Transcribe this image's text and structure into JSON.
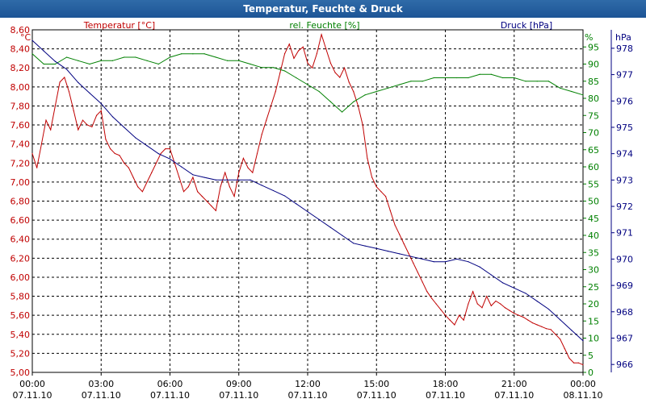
{
  "window": {
    "title": "Temperatur, Feuchte & Druck"
  },
  "chart_data": {
    "type": "line",
    "title": "Temperatur, Feuchte & Druck",
    "grid": true,
    "legend_position": "top",
    "x": {
      "range_hours": [
        0,
        24
      ],
      "ticks": [
        {
          "time": "00:00",
          "date": "07.11.10"
        },
        {
          "time": "03:00",
          "date": "07.11.10"
        },
        {
          "time": "06:00",
          "date": "07.11.10"
        },
        {
          "time": "09:00",
          "date": "07.11.10"
        },
        {
          "time": "12:00",
          "date": "07.11.10"
        },
        {
          "time": "15:00",
          "date": "07.11.10"
        },
        {
          "time": "18:00",
          "date": "07.11.10"
        },
        {
          "time": "21:00",
          "date": "07.11.10"
        },
        {
          "time": "00:00",
          "date": "08.11.10"
        }
      ]
    },
    "axes": {
      "temp": {
        "unit": "°C",
        "ylim": [
          5.0,
          8.6
        ],
        "ticks": [
          "5,00",
          "5,20",
          "5,40",
          "5,60",
          "5,80",
          "6,00",
          "6,20",
          "6,40",
          "6,60",
          "6,80",
          "7,00",
          "7,20",
          "7,40",
          "7,60",
          "7,80",
          "8,00",
          "8,20",
          "8,40",
          "8,60"
        ]
      },
      "hum": {
        "unit": "%",
        "ylim": [
          0,
          100
        ],
        "ticks": [
          "0",
          "5",
          "10",
          "15",
          "20",
          "25",
          "30",
          "35",
          "40",
          "45",
          "50",
          "55",
          "60",
          "65",
          "70",
          "75",
          "80",
          "85",
          "90",
          "95"
        ]
      },
      "press": {
        "unit": "hPa",
        "ylim": [
          965.7,
          978.7
        ],
        "ticks": [
          "966",
          "967",
          "968",
          "969",
          "970",
          "971",
          "972",
          "973",
          "974",
          "975",
          "976",
          "977",
          "978"
        ]
      }
    },
    "series": [
      {
        "name": "Temperatur [°C]",
        "axis": "temp",
        "color": "#c00000",
        "x": [
          0.0,
          0.2,
          0.4,
          0.6,
          0.8,
          1.0,
          1.2,
          1.4,
          1.6,
          1.8,
          2.0,
          2.2,
          2.4,
          2.6,
          2.8,
          3.0,
          3.2,
          3.4,
          3.6,
          3.8,
          4.0,
          4.2,
          4.4,
          4.6,
          4.8,
          5.0,
          5.2,
          5.4,
          5.6,
          5.8,
          6.0,
          6.2,
          6.4,
          6.6,
          6.8,
          7.0,
          7.2,
          7.4,
          7.6,
          7.8,
          8.0,
          8.2,
          8.4,
          8.6,
          8.8,
          9.0,
          9.2,
          9.4,
          9.6,
          9.8,
          10.0,
          10.2,
          10.4,
          10.6,
          10.8,
          11.0,
          11.2,
          11.4,
          11.6,
          11.8,
          12.0,
          12.2,
          12.4,
          12.6,
          12.8,
          13.0,
          13.2,
          13.4,
          13.6,
          13.8,
          14.0,
          14.2,
          14.4,
          14.6,
          14.8,
          15.0,
          15.2,
          15.4,
          15.6,
          15.8,
          16.0,
          16.2,
          16.4,
          16.6,
          16.8,
          17.0,
          17.2,
          17.4,
          17.6,
          17.8,
          18.0,
          18.2,
          18.4,
          18.6,
          18.8,
          19.0,
          19.2,
          19.4,
          19.6,
          19.8,
          20.0,
          20.2,
          20.4,
          20.6,
          20.8,
          21.0,
          21.2,
          21.4,
          21.6,
          21.8,
          22.0,
          22.2,
          22.4,
          22.6,
          22.8,
          23.0,
          23.2,
          23.4,
          23.6,
          23.8,
          24.0
        ],
        "values": [
          7.3,
          7.15,
          7.4,
          7.65,
          7.55,
          7.8,
          8.05,
          8.1,
          7.95,
          7.75,
          7.55,
          7.65,
          7.6,
          7.58,
          7.7,
          7.75,
          7.45,
          7.35,
          7.3,
          7.28,
          7.2,
          7.15,
          7.05,
          6.95,
          6.9,
          7.0,
          7.1,
          7.2,
          7.3,
          7.35,
          7.35,
          7.2,
          7.05,
          6.9,
          6.95,
          7.05,
          6.9,
          6.85,
          6.8,
          6.75,
          6.7,
          6.95,
          7.1,
          6.95,
          6.85,
          7.1,
          7.25,
          7.15,
          7.1,
          7.3,
          7.5,
          7.65,
          7.8,
          7.95,
          8.15,
          8.35,
          8.45,
          8.3,
          8.38,
          8.42,
          8.25,
          8.2,
          8.35,
          8.55,
          8.4,
          8.25,
          8.15,
          8.1,
          8.2,
          8.05,
          7.95,
          7.8,
          7.6,
          7.25,
          7.05,
          6.95,
          6.9,
          6.85,
          6.7,
          6.55,
          6.45,
          6.35,
          6.25,
          6.15,
          6.05,
          5.95,
          5.85,
          5.78,
          5.72,
          5.66,
          5.6,
          5.55,
          5.5,
          5.6,
          5.55,
          5.72,
          5.85,
          5.72,
          5.68,
          5.8,
          5.7,
          5.75,
          5.72,
          5.68,
          5.65,
          5.62,
          5.6,
          5.58,
          5.55,
          5.52,
          5.5,
          5.48,
          5.46,
          5.45,
          5.4,
          5.35,
          5.25,
          5.15,
          5.1,
          5.1,
          5.08
        ],
        "label_position": "top-left"
      },
      {
        "name": "rel. Feuchte [%]",
        "axis": "hum",
        "color": "#008000",
        "x": [
          0.0,
          0.5,
          1.0,
          1.5,
          2.0,
          2.5,
          3.0,
          3.5,
          4.0,
          4.5,
          5.0,
          5.5,
          6.0,
          6.5,
          7.0,
          7.5,
          8.0,
          8.5,
          9.0,
          9.5,
          10.0,
          10.5,
          11.0,
          11.5,
          12.0,
          12.5,
          13.0,
          13.5,
          14.0,
          14.5,
          15.0,
          15.5,
          16.0,
          16.5,
          17.0,
          17.5,
          18.0,
          18.5,
          19.0,
          19.5,
          20.0,
          20.5,
          21.0,
          21.5,
          22.0,
          22.5,
          23.0,
          23.5,
          24.0
        ],
        "values": [
          93,
          90,
          90,
          92,
          91,
          90,
          91,
          91,
          92,
          92,
          91,
          90,
          92,
          93,
          93,
          93,
          92,
          91,
          91,
          90,
          89,
          89,
          88,
          86,
          84,
          82,
          79,
          76,
          79,
          81,
          82,
          83,
          84,
          85,
          85,
          86,
          86,
          86,
          86,
          87,
          87,
          86,
          86,
          85,
          85,
          85,
          83,
          82,
          81
        ],
        "label_position": "top-center"
      },
      {
        "name": "Druck [hPa]",
        "axis": "press",
        "color": "#000080",
        "x": [
          0.0,
          0.5,
          1.0,
          1.5,
          2.0,
          2.5,
          3.0,
          3.5,
          4.0,
          4.5,
          5.0,
          5.5,
          6.0,
          6.5,
          7.0,
          7.5,
          8.0,
          8.5,
          9.0,
          9.5,
          10.0,
          10.5,
          11.0,
          11.5,
          12.0,
          12.5,
          13.0,
          13.5,
          14.0,
          14.5,
          15.0,
          15.5,
          16.0,
          16.5,
          17.0,
          17.5,
          18.0,
          18.5,
          19.0,
          19.5,
          20.0,
          20.5,
          21.0,
          21.5,
          22.0,
          22.5,
          23.0,
          23.5,
          24.0
        ],
        "values": [
          978.3,
          977.9,
          977.5,
          977.2,
          976.7,
          976.3,
          975.9,
          975.4,
          975.0,
          974.6,
          974.3,
          974.0,
          973.8,
          973.5,
          973.2,
          973.1,
          973.0,
          973.0,
          973.0,
          973.0,
          972.8,
          972.6,
          972.4,
          972.1,
          971.8,
          971.5,
          971.2,
          970.9,
          970.6,
          970.5,
          970.4,
          970.3,
          970.2,
          970.1,
          970.0,
          969.9,
          969.9,
          970.0,
          969.9,
          969.7,
          969.4,
          969.1,
          968.9,
          968.7,
          968.4,
          968.1,
          967.7,
          967.3,
          966.9
        ],
        "label_position": "top-right"
      }
    ]
  }
}
